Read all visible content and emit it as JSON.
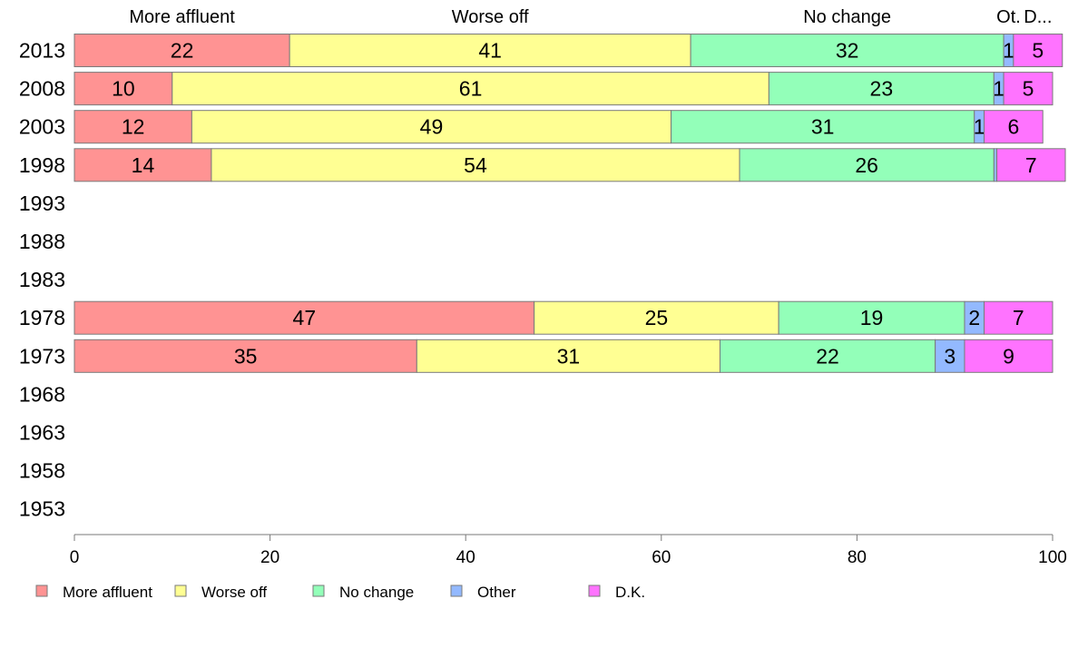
{
  "chart_data": {
    "type": "bar",
    "orientation": "horizontal",
    "stacked": true,
    "title": "",
    "xlabel": "",
    "ylabel": "",
    "xlim": [
      0,
      100
    ],
    "x_ticks": [
      0,
      20,
      40,
      60,
      80,
      100
    ],
    "categories": [
      "2013",
      "2008",
      "2003",
      "1998",
      "1993",
      "1988",
      "1983",
      "1978",
      "1973",
      "1968",
      "1963",
      "1958",
      "1953"
    ],
    "series": [
      {
        "name": "More affluent",
        "color": "#ff9393",
        "values": [
          22,
          10,
          12,
          14,
          null,
          null,
          null,
          47,
          35,
          null,
          null,
          null,
          null
        ],
        "top_label": "More affluent"
      },
      {
        "name": "Worse off",
        "color": "#ffff93",
        "values": [
          41,
          61,
          49,
          54,
          null,
          null,
          null,
          25,
          31,
          null,
          null,
          null,
          null
        ],
        "top_label": "Worse off"
      },
      {
        "name": "No change",
        "color": "#93ffb9",
        "values": [
          32,
          23,
          31,
          26,
          null,
          null,
          null,
          19,
          22,
          null,
          null,
          null,
          null
        ],
        "top_label": "No change"
      },
      {
        "name": "Other",
        "color": "#93b9ff",
        "values": [
          1,
          1,
          1,
          0.3,
          null,
          null,
          null,
          2,
          3,
          null,
          null,
          null,
          null
        ],
        "top_label": "Ot."
      },
      {
        "name": "D.K.",
        "color": "#ff73ff",
        "values": [
          5,
          5,
          6,
          7,
          null,
          null,
          null,
          7,
          9,
          null,
          null,
          null,
          null
        ],
        "top_label": "D..."
      }
    ],
    "grid": false,
    "legend": "bottom-left"
  }
}
